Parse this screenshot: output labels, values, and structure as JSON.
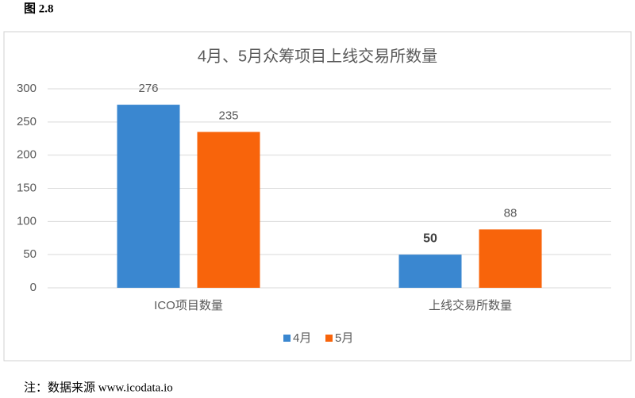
{
  "figure_label": "图 2.8",
  "note": "注：数据来源 www.icodata.io",
  "chart_data": {
    "type": "bar",
    "title": "4月、5月众筹项目上线交易所数量",
    "categories": [
      "ICO项目数量",
      "上线交易所数量"
    ],
    "series": [
      {
        "name": "4月",
        "color": "#3a87d0",
        "values": [
          276,
          50
        ]
      },
      {
        "name": "5月",
        "color": "#f8640b",
        "values": [
          235,
          88
        ]
      }
    ],
    "ylim": [
      0,
      300
    ],
    "yticks": [
      0,
      50,
      100,
      150,
      200,
      250,
      300
    ],
    "grid": true,
    "legend": "bottom"
  }
}
